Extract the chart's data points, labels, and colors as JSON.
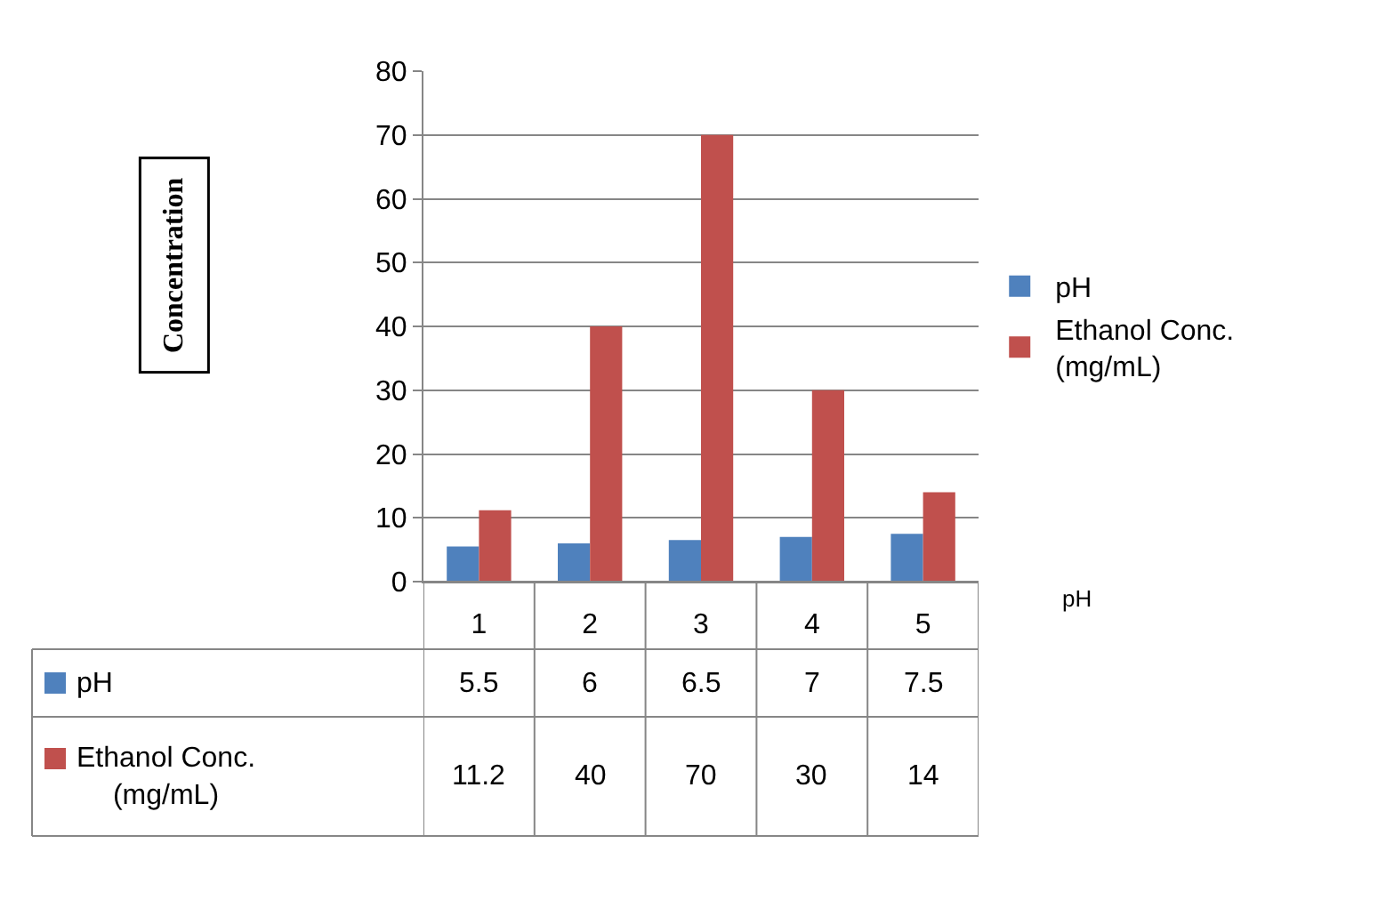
{
  "chart_data": {
    "type": "bar",
    "annotations": [
      "Concentration"
    ],
    "xlabel": "pH",
    "categories": [
      "1",
      "2",
      "3",
      "4",
      "5"
    ],
    "series": [
      {
        "name": "pH",
        "color": "#4f81bd",
        "values": [
          5.5,
          6,
          6.5,
          7,
          7.5
        ]
      },
      {
        "name": "Ethanol Conc. (mg/mL)",
        "color": "#c0504d",
        "values": [
          11.2,
          40,
          70,
          30,
          14
        ]
      }
    ],
    "ylim": [
      0,
      80
    ],
    "yticks": [
      0,
      10,
      20,
      30,
      40,
      50,
      60,
      70,
      80
    ],
    "grid": "y",
    "legend": "right",
    "data_labels": true
  }
}
